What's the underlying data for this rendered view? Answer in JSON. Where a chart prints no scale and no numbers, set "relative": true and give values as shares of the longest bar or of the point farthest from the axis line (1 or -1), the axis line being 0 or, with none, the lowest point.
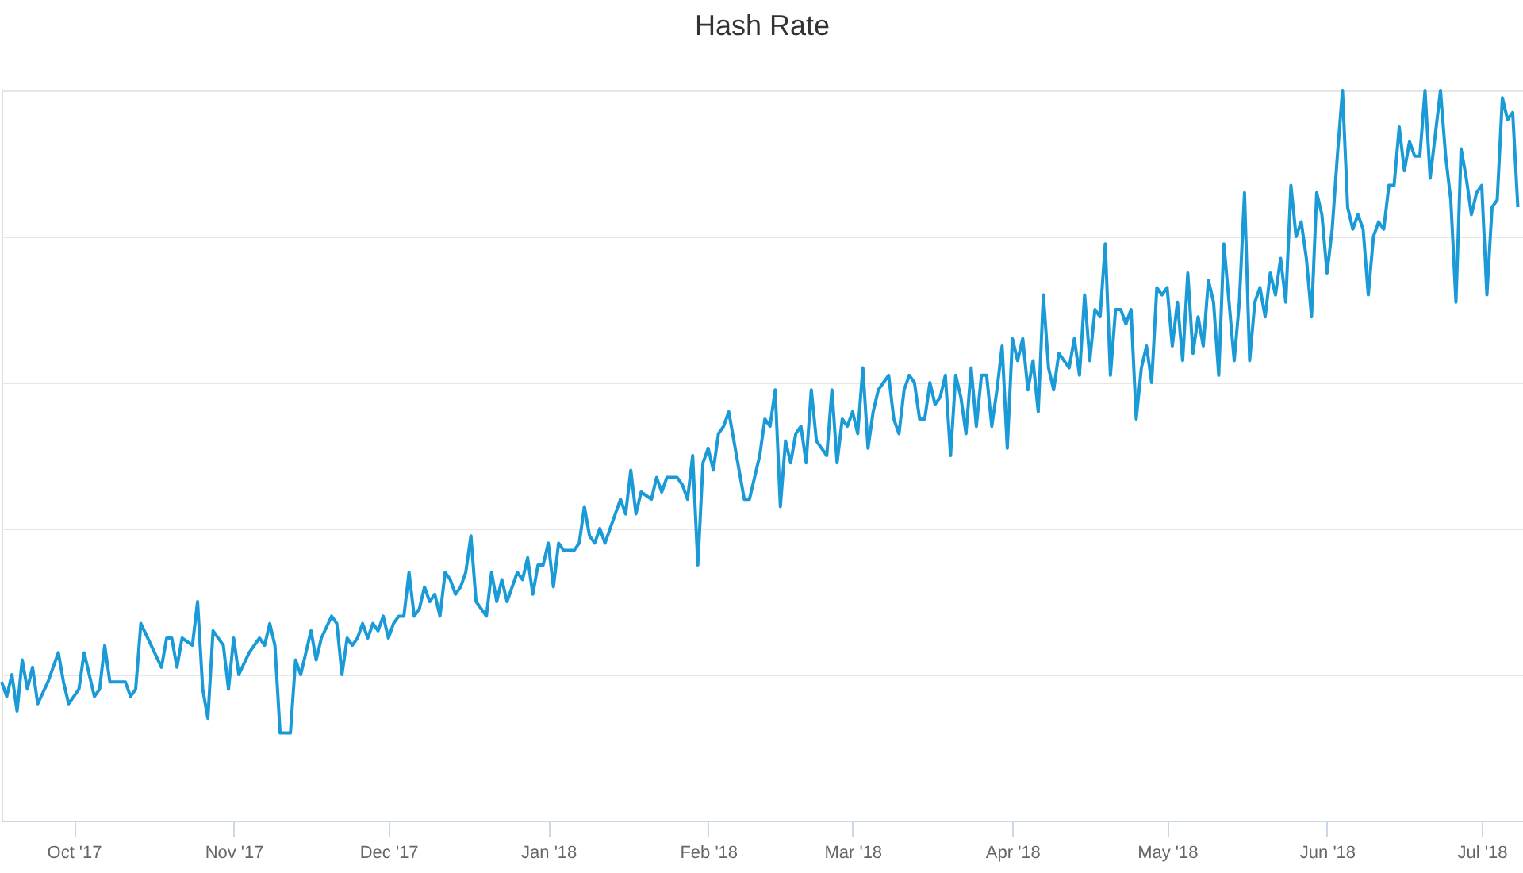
{
  "chart_data": {
    "type": "line",
    "title": "Hash Rate",
    "relative": true,
    "grid": "y",
    "xlim": [
      "2017-09-17",
      "2018-07-09"
    ],
    "xticks": [
      {
        "value": "2017-10-01",
        "label": "Oct '17"
      },
      {
        "value": "2017-11-01",
        "label": "Nov '17"
      },
      {
        "value": "2017-12-01",
        "label": "Dec '17"
      },
      {
        "value": "2018-01-01",
        "label": "Jan '18"
      },
      {
        "value": "2018-02-01",
        "label": "Feb '18"
      },
      {
        "value": "2018-03-01",
        "label": "Mar '18"
      },
      {
        "value": "2018-04-01",
        "label": "Apr '18"
      },
      {
        "value": "2018-05-01",
        "label": "May '18"
      },
      {
        "value": "2018-06-01",
        "label": "Jun '18"
      },
      {
        "value": "2018-07-01",
        "label": "Jul '18"
      }
    ],
    "x": [
      "2017-09-17",
      "2017-09-18",
      "2017-09-19",
      "2017-09-20",
      "2017-09-21",
      "2017-09-22",
      "2017-09-23",
      "2017-09-24",
      "2017-09-26",
      "2017-09-28",
      "2017-09-29",
      "2017-09-30",
      "2017-10-02",
      "2017-10-03",
      "2017-10-05",
      "2017-10-06",
      "2017-10-07",
      "2017-10-08",
      "2017-10-11",
      "2017-10-12",
      "2017-10-13",
      "2017-10-14",
      "2017-10-16",
      "2017-10-18",
      "2017-10-19",
      "2017-10-20",
      "2017-10-21",
      "2017-10-22",
      "2017-10-24",
      "2017-10-25",
      "2017-10-26",
      "2017-10-27",
      "2017-10-28",
      "2017-10-30",
      "2017-10-31",
      "2017-11-01",
      "2017-11-02",
      "2017-11-04",
      "2017-11-06",
      "2017-11-07",
      "2017-11-08",
      "2017-11-09",
      "2017-11-10",
      "2017-11-12",
      "2017-11-13",
      "2017-11-14",
      "2017-11-15",
      "2017-11-16",
      "2017-11-17",
      "2017-11-18",
      "2017-11-20",
      "2017-11-21",
      "2017-11-22",
      "2017-11-23",
      "2017-11-24",
      "2017-11-25",
      "2017-11-26",
      "2017-11-27",
      "2017-11-28",
      "2017-11-29",
      "2017-11-30",
      "2017-12-01",
      "2017-12-02",
      "2017-12-03",
      "2017-12-04",
      "2017-12-05",
      "2017-12-06",
      "2017-12-07",
      "2017-12-08",
      "2017-12-09",
      "2017-12-10",
      "2017-12-11",
      "2017-12-12",
      "2017-12-13",
      "2017-12-14",
      "2017-12-15",
      "2017-12-16",
      "2017-12-17",
      "2017-12-18",
      "2017-12-19",
      "2017-12-20",
      "2017-12-21",
      "2017-12-22",
      "2017-12-23",
      "2017-12-24",
      "2017-12-25",
      "2017-12-26",
      "2017-12-27",
      "2017-12-28",
      "2017-12-29",
      "2017-12-30",
      "2017-12-31",
      "2018-01-01",
      "2018-01-02",
      "2018-01-03",
      "2018-01-04",
      "2018-01-05",
      "2018-01-06",
      "2018-01-07",
      "2018-01-08",
      "2018-01-09",
      "2018-01-10",
      "2018-01-11",
      "2018-01-12",
      "2018-01-13",
      "2018-01-14",
      "2018-01-15",
      "2018-01-16",
      "2018-01-17",
      "2018-01-18",
      "2018-01-19",
      "2018-01-21",
      "2018-01-22",
      "2018-01-23",
      "2018-01-24",
      "2018-01-26",
      "2018-01-27",
      "2018-01-28",
      "2018-01-29",
      "2018-01-30",
      "2018-01-31",
      "2018-02-01",
      "2018-02-02",
      "2018-02-03",
      "2018-02-04",
      "2018-02-05",
      "2018-02-07",
      "2018-02-08",
      "2018-02-09",
      "2018-02-10",
      "2018-02-11",
      "2018-02-12",
      "2018-02-13",
      "2018-02-14",
      "2018-02-15",
      "2018-02-16",
      "2018-02-17",
      "2018-02-18",
      "2018-02-19",
      "2018-02-20",
      "2018-02-21",
      "2018-02-22",
      "2018-02-23",
      "2018-02-24",
      "2018-02-25",
      "2018-02-26",
      "2018-02-27",
      "2018-02-28",
      "2018-03-01",
      "2018-03-02",
      "2018-03-03",
      "2018-03-04",
      "2018-03-05",
      "2018-03-06",
      "2018-03-07",
      "2018-03-08",
      "2018-03-09",
      "2018-03-10",
      "2018-03-11",
      "2018-03-12",
      "2018-03-13",
      "2018-03-14",
      "2018-03-15",
      "2018-03-16",
      "2018-03-17",
      "2018-03-18",
      "2018-03-19",
      "2018-03-20",
      "2018-03-21",
      "2018-03-22",
      "2018-03-23",
      "2018-03-24",
      "2018-03-25",
      "2018-03-26",
      "2018-03-27",
      "2018-03-28",
      "2018-03-29",
      "2018-03-30",
      "2018-03-31",
      "2018-04-01",
      "2018-04-02",
      "2018-04-03",
      "2018-04-04",
      "2018-04-05",
      "2018-04-06",
      "2018-04-07",
      "2018-04-08",
      "2018-04-09",
      "2018-04-10",
      "2018-04-11",
      "2018-04-12",
      "2018-04-13",
      "2018-04-14",
      "2018-04-15",
      "2018-04-16",
      "2018-04-17",
      "2018-04-18",
      "2018-04-19",
      "2018-04-20",
      "2018-04-21",
      "2018-04-22",
      "2018-04-23",
      "2018-04-24",
      "2018-04-25",
      "2018-04-26",
      "2018-04-27",
      "2018-04-28",
      "2018-04-29",
      "2018-04-30",
      "2018-05-01",
      "2018-05-02",
      "2018-05-03",
      "2018-05-04",
      "2018-05-05",
      "2018-05-06",
      "2018-05-07",
      "2018-05-08",
      "2018-05-09",
      "2018-05-10",
      "2018-05-11",
      "2018-05-12",
      "2018-05-13",
      "2018-05-14",
      "2018-05-15",
      "2018-05-16",
      "2018-05-17",
      "2018-05-18",
      "2018-05-19",
      "2018-05-20",
      "2018-05-21",
      "2018-05-22",
      "2018-05-23",
      "2018-05-24",
      "2018-05-25",
      "2018-05-26",
      "2018-05-27",
      "2018-05-28",
      "2018-05-29",
      "2018-05-30",
      "2018-05-31",
      "2018-06-01",
      "2018-06-02",
      "2018-06-03",
      "2018-06-04",
      "2018-06-05",
      "2018-06-06",
      "2018-06-07",
      "2018-06-08",
      "2018-06-09",
      "2018-06-10",
      "2018-06-11",
      "2018-06-12",
      "2018-06-13",
      "2018-06-14",
      "2018-06-15",
      "2018-06-16",
      "2018-06-17",
      "2018-06-18",
      "2018-06-19",
      "2018-06-20",
      "2018-06-21",
      "2018-06-22",
      "2018-06-23",
      "2018-06-24",
      "2018-06-25",
      "2018-06-26",
      "2018-06-27",
      "2018-06-28",
      "2018-06-29",
      "2018-06-30",
      "2018-07-01",
      "2018-07-02",
      "2018-07-03",
      "2018-07-04",
      "2018-07-05",
      "2018-07-06",
      "2018-07-07",
      "2018-07-08"
    ],
    "series": [
      {
        "color": "#1a9ad6",
        "values": [
          0.19,
          0.17,
          0.2,
          0.15,
          0.22,
          0.18,
          0.21,
          0.16,
          0.19,
          0.23,
          0.19,
          0.16,
          0.18,
          0.23,
          0.17,
          0.18,
          0.24,
          0.19,
          0.19,
          0.17,
          0.18,
          0.27,
          0.24,
          0.21,
          0.25,
          0.25,
          0.21,
          0.25,
          0.24,
          0.3,
          0.18,
          0.14,
          0.26,
          0.24,
          0.18,
          0.25,
          0.2,
          0.23,
          0.25,
          0.24,
          0.27,
          0.24,
          0.12,
          0.12,
          0.22,
          0.2,
          0.23,
          0.26,
          0.22,
          0.25,
          0.28,
          0.27,
          0.2,
          0.25,
          0.24,
          0.25,
          0.27,
          0.25,
          0.27,
          0.26,
          0.28,
          0.25,
          0.27,
          0.28,
          0.28,
          0.34,
          0.28,
          0.29,
          0.32,
          0.3,
          0.31,
          0.28,
          0.34,
          0.33,
          0.31,
          0.32,
          0.34,
          0.39,
          0.3,
          0.29,
          0.28,
          0.34,
          0.3,
          0.33,
          0.3,
          0.32,
          0.34,
          0.33,
          0.36,
          0.31,
          0.35,
          0.35,
          0.38,
          0.32,
          0.38,
          0.37,
          0.37,
          0.37,
          0.38,
          0.43,
          0.39,
          0.38,
          0.4,
          0.38,
          0.4,
          0.42,
          0.44,
          0.42,
          0.48,
          0.42,
          0.45,
          0.44,
          0.47,
          0.45,
          0.47,
          0.47,
          0.46,
          0.44,
          0.5,
          0.35,
          0.49,
          0.51,
          0.48,
          0.53,
          0.54,
          0.56,
          0.48,
          0.44,
          0.44,
          0.47,
          0.5,
          0.55,
          0.54,
          0.59,
          0.43,
          0.52,
          0.49,
          0.53,
          0.54,
          0.49,
          0.59,
          0.52,
          0.51,
          0.5,
          0.59,
          0.49,
          0.55,
          0.54,
          0.56,
          0.53,
          0.62,
          0.51,
          0.56,
          0.59,
          0.6,
          0.61,
          0.55,
          0.53,
          0.59,
          0.61,
          0.6,
          0.55,
          0.55,
          0.6,
          0.57,
          0.58,
          0.61,
          0.5,
          0.61,
          0.58,
          0.53,
          0.62,
          0.54,
          0.61,
          0.61,
          0.54,
          0.59,
          0.65,
          0.51,
          0.66,
          0.63,
          0.66,
          0.59,
          0.63,
          0.56,
          0.72,
          0.62,
          0.59,
          0.64,
          0.63,
          0.62,
          0.66,
          0.61,
          0.72,
          0.63,
          0.7,
          0.69,
          0.79,
          0.61,
          0.7,
          0.7,
          0.68,
          0.7,
          0.55,
          0.62,
          0.65,
          0.6,
          0.73,
          0.72,
          0.73,
          0.65,
          0.71,
          0.63,
          0.75,
          0.64,
          0.69,
          0.65,
          0.74,
          0.71,
          0.61,
          0.79,
          0.71,
          0.63,
          0.71,
          0.86,
          0.63,
          0.71,
          0.73,
          0.69,
          0.75,
          0.72,
          0.77,
          0.71,
          0.87,
          0.8,
          0.82,
          0.77,
          0.69,
          0.86,
          0.83,
          0.75,
          0.81,
          0.91,
          1.0,
          0.84,
          0.81,
          0.83,
          0.81,
          0.72,
          0.8,
          0.82,
          0.81,
          0.87,
          0.87,
          0.95,
          0.89,
          0.93,
          0.91,
          0.91,
          1.0,
          0.88,
          0.94,
          1.0,
          0.91,
          0.85,
          0.71,
          0.92,
          0.88,
          0.83,
          0.86,
          0.87,
          0.72,
          0.84,
          0.85,
          0.99,
          0.96,
          0.97,
          0.84
        ]
      }
    ]
  }
}
